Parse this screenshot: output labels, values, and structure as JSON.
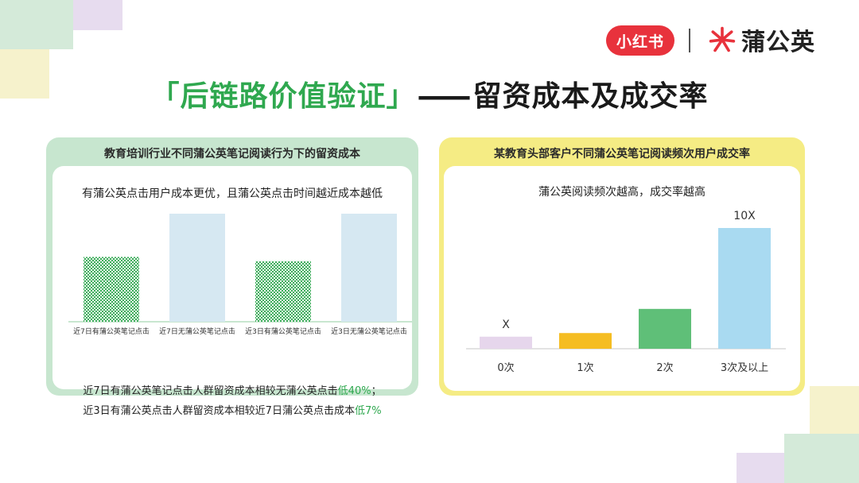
{
  "brand": {
    "xiaohongshu": "小红书",
    "pugongying": "蒲公英"
  },
  "title": {
    "highlight": "「后链路价值验证」",
    "dash": "——",
    "rest": "留资成本及成交率"
  },
  "left_card": {
    "header": "教育培训行业不同蒲公英笔记阅读行为下的留资成本",
    "subtitle": "有蒲公英点击用户成本更优，且蒲公英点击时间越近成本越低",
    "note1_prefix": "近7日有蒲公英笔记点击人群留资成本相较无蒲公英点击",
    "note1_value": "低40%",
    "note1_suffix": "；",
    "note2_prefix": "近3日有蒲公英点击人群留资成本相较近7日蒲公英点击成本",
    "note2_value": "低7%",
    "colors": {
      "pattern": "#3fae5c",
      "plain": "#d6e8f2",
      "baseline": "#b5ddc0"
    }
  },
  "right_card": {
    "header": "某教育头部客户不同蒲公英笔记阅读频次用户成交率",
    "subtitle": "蒲公英阅读频次越高，成交率越高",
    "colors": {
      "axis": "#e3e3e3"
    }
  },
  "chart_data": [
    {
      "type": "bar",
      "categories": [
        "近7日有蒲公英笔记点击",
        "近7日无蒲公英笔记点击",
        "近3日有蒲公英笔记点击",
        "近3日无蒲公英笔记点击"
      ],
      "values": [
        0.6,
        1.0,
        0.56,
        1.0
      ],
      "ylim": [
        0,
        1.0
      ],
      "styles": [
        "pattern",
        "plain",
        "pattern",
        "plain"
      ]
    },
    {
      "type": "bar",
      "categories": [
        "0次",
        "1次",
        "2次",
        "3次及以上"
      ],
      "values": [
        0.1,
        0.13,
        0.33,
        1.0
      ],
      "data_labels": [
        "X",
        "",
        "",
        "10X"
      ],
      "ylim": [
        0,
        1.0
      ],
      "colors": [
        "#e6d6ec",
        "#f5bd22",
        "#5fbf78",
        "#a9daf1"
      ]
    }
  ]
}
